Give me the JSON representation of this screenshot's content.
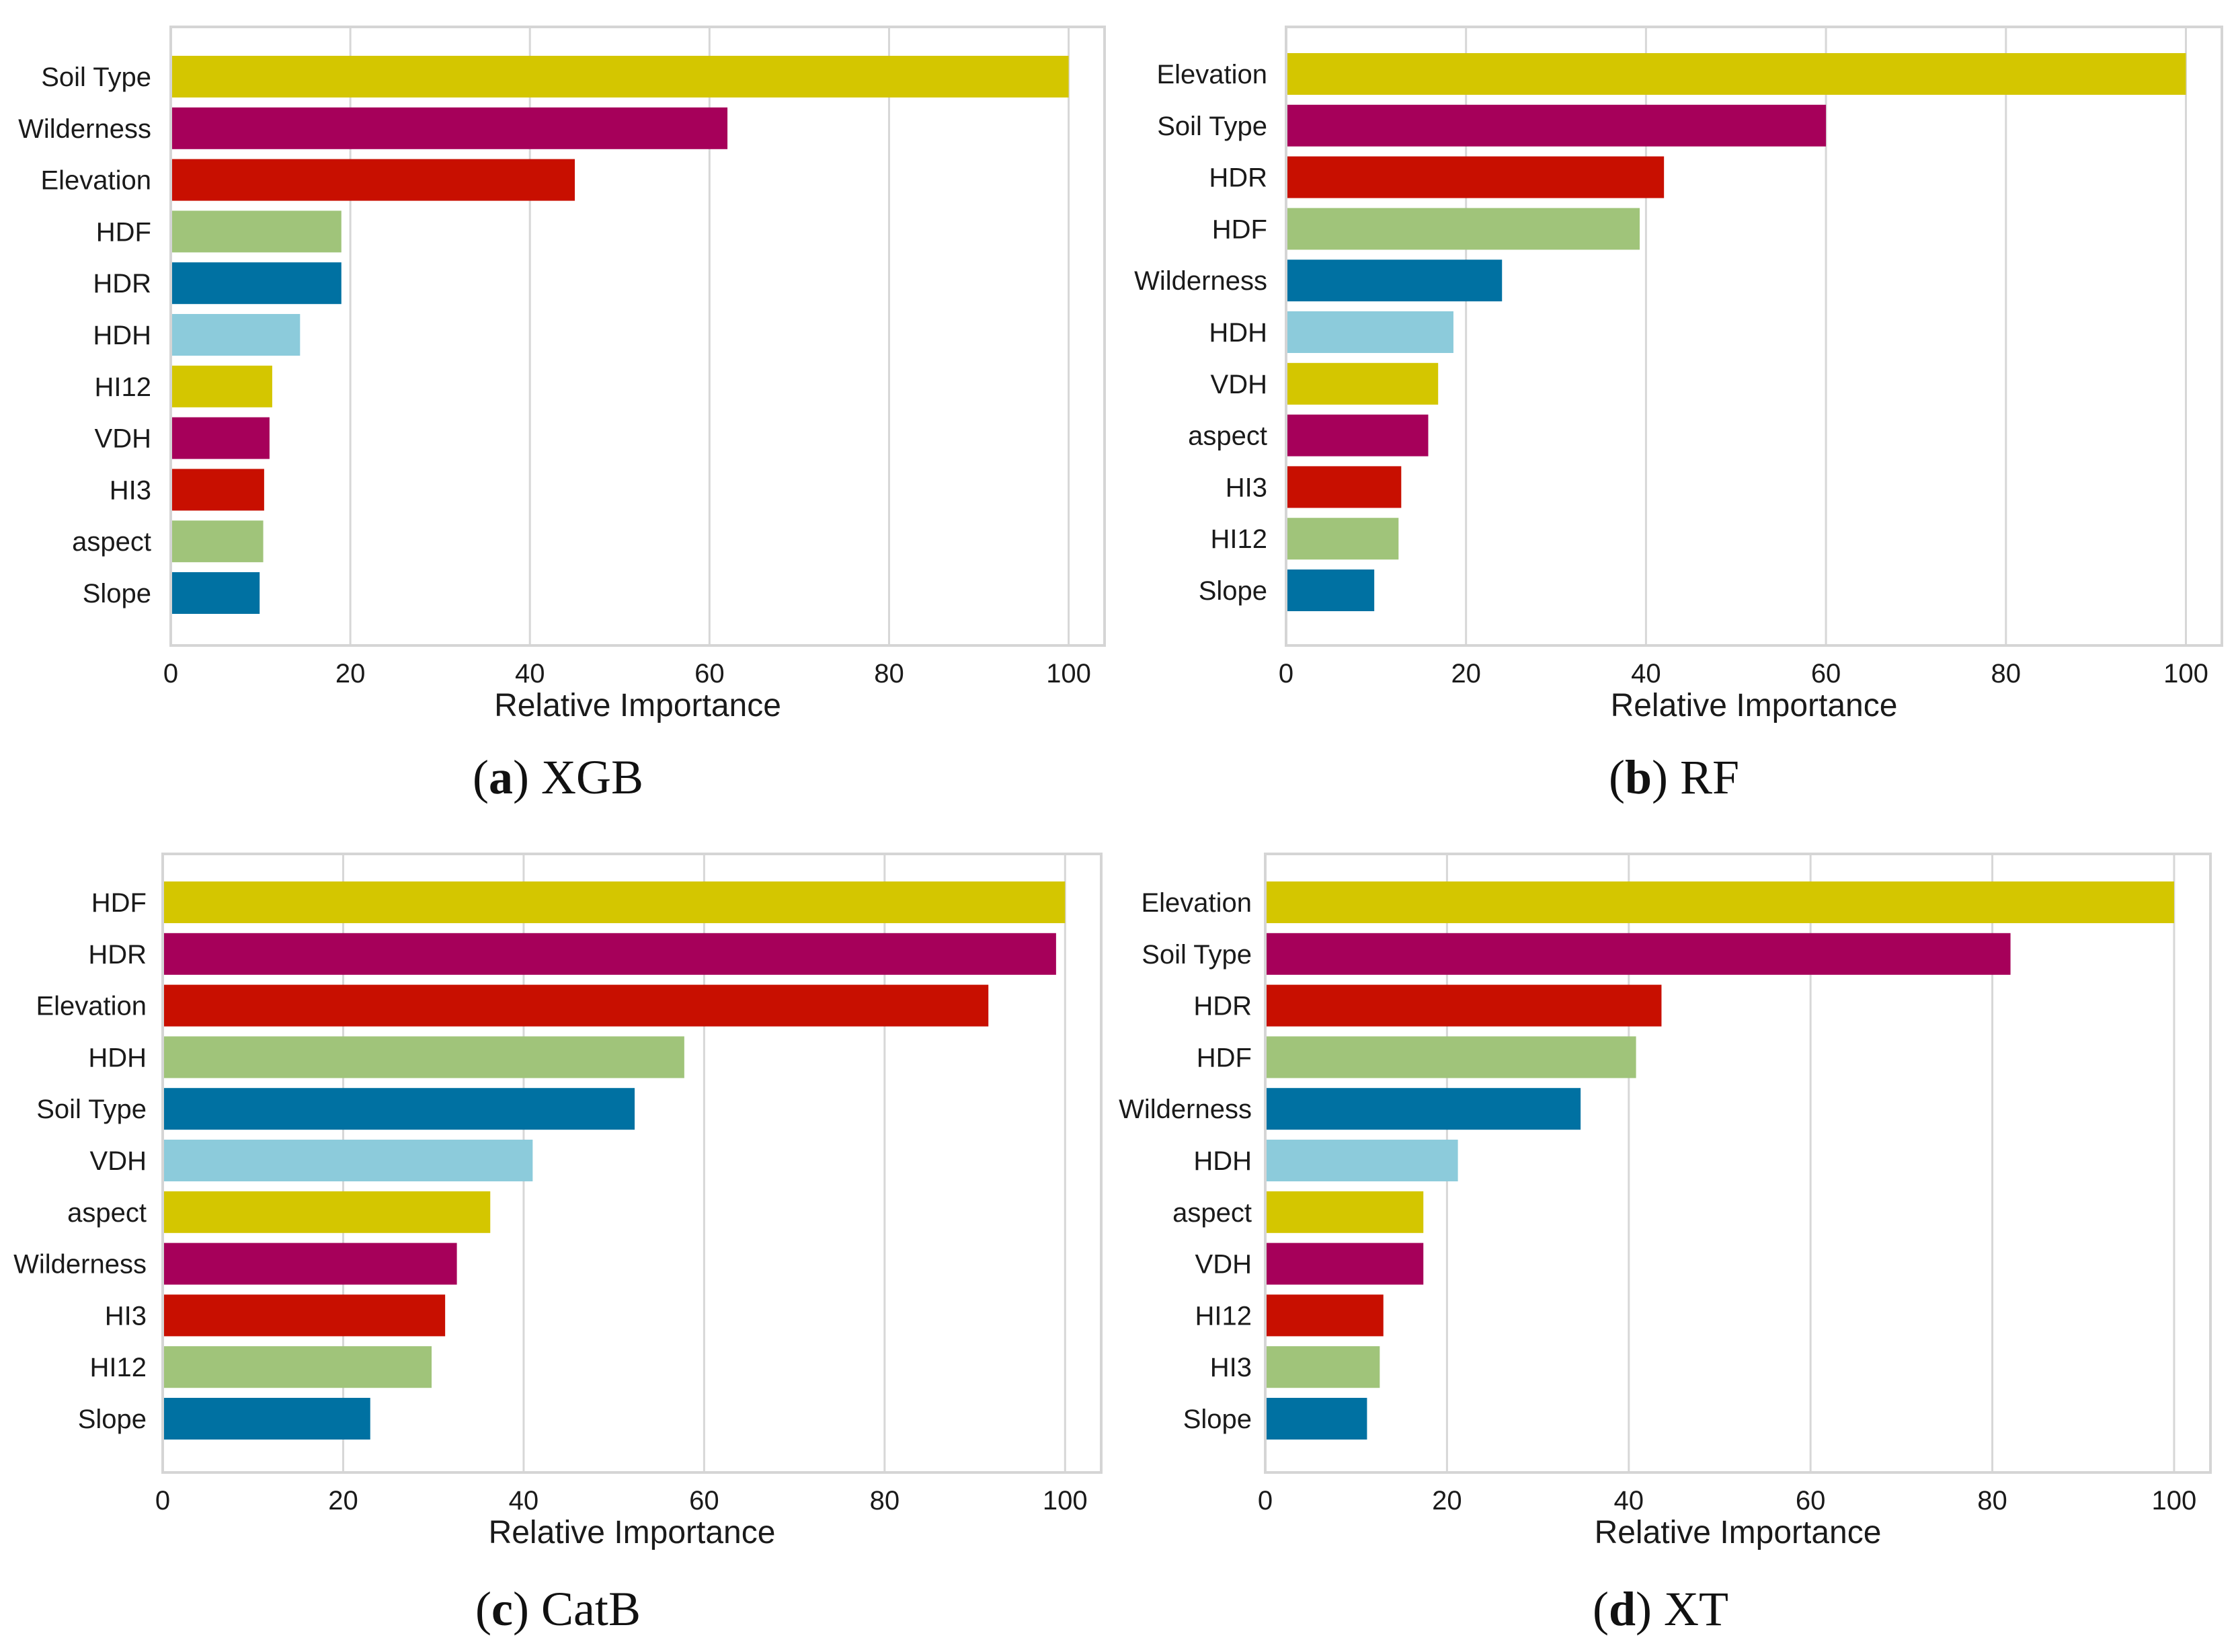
{
  "chart_data": [
    {
      "id": "xgb",
      "type": "bar",
      "orientation": "horizontal",
      "caption_letter": "a",
      "caption_text": "XGB",
      "xlabel": "Relative Importance",
      "xlim": [
        0,
        104
      ],
      "xticks": [
        0,
        20,
        40,
        60,
        80,
        100
      ],
      "grid": true,
      "categories": [
        "Soil Type",
        "Wilderness",
        "Elevation",
        "HDF",
        "HDR",
        "HDH",
        "HI12",
        "VDH",
        "HI3",
        "aspect",
        "Slope"
      ],
      "values": [
        100,
        62,
        45,
        19,
        19,
        14.4,
        11.3,
        11,
        10.4,
        10.3,
        9.9
      ]
    },
    {
      "id": "rf",
      "type": "bar",
      "orientation": "horizontal",
      "caption_letter": "b",
      "caption_text": "RF",
      "xlabel": "Relative Importance",
      "xlim": [
        0,
        104
      ],
      "xticks": [
        0,
        20,
        40,
        60,
        80,
        100
      ],
      "grid": true,
      "categories": [
        "Elevation",
        "Soil Type",
        "HDR",
        "HDF",
        "Wilderness",
        "HDH",
        "VDH",
        "aspect",
        "HI3",
        "HI12",
        "Slope"
      ],
      "values": [
        100,
        60,
        42,
        39.3,
        24,
        18.6,
        16.9,
        15.8,
        12.8,
        12.5,
        9.8
      ]
    },
    {
      "id": "catb",
      "type": "bar",
      "orientation": "horizontal",
      "caption_letter": "c",
      "caption_text": "CatB",
      "xlabel": "Relative Importance",
      "xlim": [
        0,
        104
      ],
      "xticks": [
        0,
        20,
        40,
        60,
        80,
        100
      ],
      "grid": true,
      "categories": [
        "HDF",
        "HDR",
        "Elevation",
        "HDH",
        "Soil Type",
        "VDH",
        "aspect",
        "Wilderness",
        "HI3",
        "HI12",
        "Slope"
      ],
      "values": [
        100,
        99,
        91.5,
        57.8,
        52.3,
        41,
        36.3,
        32.6,
        31.3,
        29.8,
        23
      ]
    },
    {
      "id": "xt",
      "type": "bar",
      "orientation": "horizontal",
      "caption_letter": "d",
      "caption_text": "XT",
      "xlabel": "Relative Importance",
      "xlim": [
        0,
        104
      ],
      "xticks": [
        0,
        20,
        40,
        60,
        80,
        100
      ],
      "grid": true,
      "categories": [
        "Elevation",
        "Soil Type",
        "HDR",
        "HDF",
        "Wilderness",
        "HDH",
        "aspect",
        "VDH",
        "HI12",
        "HI3",
        "Slope"
      ],
      "values": [
        100,
        82,
        43.6,
        40.8,
        34.7,
        21.2,
        17.4,
        17.4,
        13,
        12.6,
        11.2
      ]
    }
  ],
  "palette": [
    "#d4c600",
    "#a6005a",
    "#c80f00",
    "#a0c47a",
    "#0071a2",
    "#8ccbdb",
    "#d4c600",
    "#a6005a",
    "#c80f00",
    "#a0c47a",
    "#0071a2"
  ],
  "frame_color": "#d5d5d5",
  "grid_color": "#d7d7d7"
}
